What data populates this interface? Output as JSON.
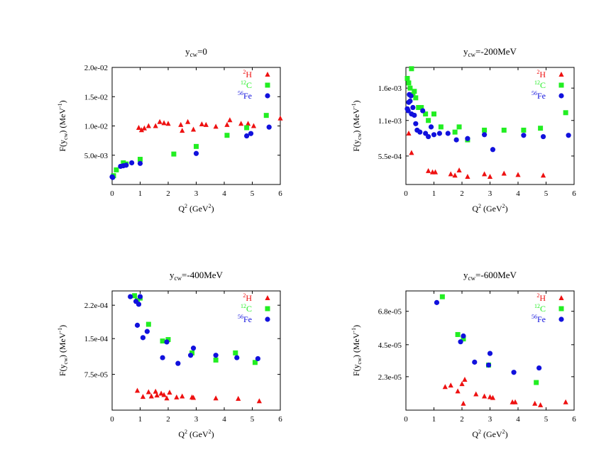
{
  "colors": {
    "2H": "#ee1111",
    "12C": "#22ee22",
    "56Fe": "#1111dd",
    "axis": "#000000"
  },
  "legend": [
    {
      "sup": "2",
      "name": "H",
      "color": "#ee1111",
      "marker": "triangle"
    },
    {
      "sup": "12",
      "name": "C",
      "color": "#22ee22",
      "marker": "square"
    },
    {
      "sup": "56",
      "name": "Fe",
      "color": "#1111dd",
      "marker": "circle"
    }
  ],
  "chart_data": [
    {
      "type": "scatter",
      "title": {
        "base": "y",
        "sub": "cw",
        "rest": "=0"
      },
      "xlabel": {
        "base": "Q",
        "sup": "2",
        "rest": " (GeV",
        "sup2": "2",
        "end": ")"
      },
      "ylabel": {
        "base": "F(y",
        "sub": "cw",
        "rest": ") (MeV",
        "sup": "-1",
        "end": ")"
      },
      "xlim": [
        0,
        6
      ],
      "ylim": [
        0,
        0.02
      ],
      "xticks": [
        0,
        1,
        2,
        3,
        4,
        5,
        6
      ],
      "yticks": [
        {
          "v": 0.005,
          "label": "5.0e-03"
        },
        {
          "v": 0.01,
          "label": "1.0e-02"
        },
        {
          "v": 0.015,
          "label": "1.5e-02"
        },
        {
          "v": 0.02,
          "label": "2.0e-02"
        }
      ],
      "series": [
        {
          "marker": "triangle",
          "color": "#ee1111",
          "x": [
            0.95,
            1.05,
            1.15,
            1.3,
            1.55,
            1.7,
            1.85,
            2.0,
            2.45,
            2.5,
            2.7,
            2.9,
            3.2,
            3.35,
            3.7,
            4.1,
            4.2,
            4.6,
            4.85,
            5.05,
            6.0
          ],
          "y": [
            0.0097,
            0.0093,
            0.0096,
            0.01,
            0.01,
            0.0107,
            0.0105,
            0.0104,
            0.0102,
            0.0092,
            0.0107,
            0.0094,
            0.0103,
            0.0102,
            0.0099,
            0.0102,
            0.011,
            0.0104,
            0.0104,
            0.01,
            0.0113
          ]
        },
        {
          "marker": "square",
          "color": "#22ee22",
          "x": [
            0.05,
            0.15,
            0.4,
            0.5,
            1.0,
            2.2,
            3.0,
            4.1,
            4.8,
            5.5
          ],
          "y": [
            0.0015,
            0.0025,
            0.0037,
            0.0035,
            0.0043,
            0.0052,
            0.0065,
            0.0084,
            0.0097,
            0.0118
          ]
        },
        {
          "marker": "circle",
          "color": "#1111dd",
          "x": [
            0.0,
            0.02,
            0.3,
            0.4,
            0.5,
            0.7,
            1.0,
            3.0,
            4.8,
            4.95,
            5.6
          ],
          "y": [
            0.0013,
            0.0012,
            0.0031,
            0.0032,
            0.0033,
            0.0037,
            0.0036,
            0.0053,
            0.0083,
            0.0087,
            0.0098
          ]
        }
      ]
    },
    {
      "type": "scatter",
      "title": {
        "base": "y",
        "sub": "cw",
        "rest": "=-200MeV"
      },
      "xlabel": {
        "base": "Q",
        "sup": "2",
        "rest": " (GeV",
        "sup2": "2",
        "end": ")"
      },
      "ylabel": {
        "base": "F(y",
        "sub": "cw",
        "rest": ") (MeV",
        "sup": "-1",
        "end": ")"
      },
      "xlim": [
        0,
        6
      ],
      "ylim": [
        0.00011,
        0.00192
      ],
      "xticks": [
        0,
        1,
        2,
        3,
        4,
        5,
        6
      ],
      "yticks": [
        {
          "v": 0.00055,
          "label": "5.5e-04"
        },
        {
          "v": 0.0011,
          "label": "1.1e-03"
        },
        {
          "v": 0.0016,
          "label": "1.6e-03"
        }
      ],
      "series": [
        {
          "marker": "triangle",
          "color": "#ee1111",
          "x": [
            0.1,
            0.2,
            0.8,
            0.95,
            1.05,
            1.6,
            1.75,
            1.9,
            2.2,
            2.8,
            3.0,
            3.5,
            4.0,
            4.9
          ],
          "y": [
            0.0009,
            0.0006,
            0.00032,
            0.0003,
            0.0003,
            0.00027,
            0.00025,
            0.00033,
            0.00023,
            0.00027,
            0.00023,
            0.00028,
            0.00026,
            0.00025
          ]
        },
        {
          "marker": "square",
          "color": "#22ee22",
          "x": [
            0.05,
            0.1,
            0.15,
            0.2,
            0.25,
            0.3,
            0.35,
            0.45,
            0.55,
            0.7,
            0.8,
            1.0,
            1.25,
            1.75,
            1.9,
            2.2,
            2.8,
            3.5,
            4.2,
            4.8,
            5.7
          ],
          "y": [
            0.00175,
            0.00168,
            0.0016,
            0.0019,
            0.0015,
            0.00155,
            0.00145,
            0.0013,
            0.0013,
            0.0012,
            0.0011,
            0.0012,
            0.001,
            0.00092,
            0.001,
            0.0008,
            0.00095,
            0.00095,
            0.00095,
            0.00098,
            0.00122
          ]
        },
        {
          "marker": "circle",
          "color": "#1111dd",
          "x": [
            0.05,
            0.08,
            0.1,
            0.12,
            0.15,
            0.18,
            0.2,
            0.25,
            0.3,
            0.35,
            0.4,
            0.5,
            0.6,
            0.7,
            0.8,
            0.9,
            1.0,
            1.2,
            1.5,
            1.8,
            2.2,
            2.8,
            3.1,
            4.2,
            4.9,
            5.8
          ],
          "y": [
            0.00128,
            0.00125,
            0.00138,
            0.0015,
            0.0014,
            0.00148,
            0.0012,
            0.0013,
            0.00118,
            0.00105,
            0.00095,
            0.00092,
            0.00125,
            0.0009,
            0.00085,
            0.001,
            0.00088,
            0.0009,
            0.0009,
            0.0008,
            0.00082,
            0.00088,
            0.00065,
            0.00087,
            0.00085,
            0.00087
          ]
        }
      ]
    },
    {
      "type": "scatter",
      "title": {
        "base": "y",
        "sub": "cw",
        "rest": "=-400MeV"
      },
      "xlabel": {
        "base": "Q",
        "sup": "2",
        "rest": " (GeV",
        "sup2": "2",
        "end": ")"
      },
      "ylabel": {
        "base": "F(y",
        "sub": "cw",
        "rest": ") (MeV",
        "sup": "-1",
        "end": ")"
      },
      "xlim": [
        0,
        6
      ],
      "ylim": [
        0,
        0.00025
      ],
      "xticks": [
        0,
        1,
        2,
        3,
        4,
        5,
        6
      ],
      "yticks": [
        {
          "v": 7.5e-05,
          "label": "7.5e-05"
        },
        {
          "v": 0.00015,
          "label": "1.5e-04"
        },
        {
          "v": 0.00022,
          "label": "2.2e-04"
        }
      ],
      "series": [
        {
          "marker": "triangle",
          "color": "#ee1111",
          "x": [
            0.9,
            1.1,
            1.3,
            1.4,
            1.55,
            1.6,
            1.75,
            1.85,
            1.95,
            2.05,
            2.3,
            2.5,
            2.85,
            2.9,
            3.7,
            4.5,
            5.25
          ],
          "y": [
            4.1e-05,
            2.8e-05,
            3.8e-05,
            2.9e-05,
            3.9e-05,
            3.1e-05,
            3.5e-05,
            3.2e-05,
            2.5e-05,
            3.7e-05,
            2.7e-05,
            2.9e-05,
            2.7e-05,
            2.6e-05,
            2.5e-05,
            2.4e-05,
            1.9e-05
          ]
        },
        {
          "marker": "square",
          "color": "#22ee22",
          "x": [
            0.8,
            0.9,
            1.0,
            1.3,
            1.8,
            2.0,
            2.85,
            3.7,
            4.4,
            5.1
          ],
          "y": [
            0.00024,
            0.00023,
            0.000235,
            0.00018,
            0.000145,
            0.000148,
            0.00012,
            0.000105,
            0.00012,
            0.0001
          ]
        },
        {
          "marker": "circle",
          "color": "#1111dd",
          "x": [
            0.65,
            0.85,
            0.9,
            0.95,
            1.0,
            1.1,
            1.25,
            1.8,
            1.95,
            2.35,
            2.8,
            2.9,
            3.7,
            4.45,
            5.2
          ],
          "y": [
            0.000238,
            0.000228,
            0.000178,
            0.000222,
            0.000238,
            0.000152,
            0.000165,
            0.00011,
            0.000143,
            9.8e-05,
            0.000115,
            0.00013,
            0.000115,
            0.00011,
            0.000108
          ]
        }
      ]
    },
    {
      "type": "scatter",
      "title": {
        "base": "y",
        "sub": "cw",
        "rest": "=-600MeV"
      },
      "xlabel": {
        "base": "Q",
        "sup": "2",
        "rest": " (GeV",
        "sup2": "2",
        "end": ")"
      },
      "ylabel": {
        "base": "F(y",
        "sub": "cw",
        "rest": ") (MeV",
        "sup": "-1",
        "end": ")"
      },
      "xlim": [
        0,
        6
      ],
      "ylim": [
        0,
        8.2e-05
      ],
      "xticks": [
        0,
        1,
        2,
        3,
        4,
        5,
        6
      ],
      "yticks": [
        {
          "v": 2.3e-05,
          "label": "2.3e-05"
        },
        {
          "v": 4.5e-05,
          "label": "4.5e-05"
        },
        {
          "v": 6.8e-05,
          "label": "6.8e-05"
        }
      ],
      "series": [
        {
          "marker": "triangle",
          "color": "#ee1111",
          "x": [
            1.4,
            1.6,
            1.85,
            2.0,
            2.05,
            2.1,
            2.5,
            2.8,
            3.0,
            3.1,
            3.8,
            3.9,
            4.6,
            4.8,
            5.7
          ],
          "y": [
            1.6e-05,
            1.7e-05,
            1.3e-05,
            1.8e-05,
            4.5e-06,
            2.1e-05,
            1.1e-05,
            9.5e-06,
            9e-06,
            8.5e-06,
            5.5e-06,
            5.5e-06,
            4.5e-06,
            3.5e-06,
            5.5e-06
          ]
        },
        {
          "marker": "square",
          "color": "#22ee22",
          "x": [
            1.3,
            1.85,
            2.05,
            2.95,
            4.65
          ],
          "y": [
            7.8e-05,
            5.2e-05,
            4.9e-05,
            3.1e-05,
            1.9e-05
          ]
        },
        {
          "marker": "circle",
          "color": "#1111dd",
          "x": [
            1.1,
            1.95,
            2.05,
            2.45,
            2.95,
            3.0,
            3.85,
            4.75
          ],
          "y": [
            7.4e-05,
            4.7e-05,
            5.1e-05,
            3.3e-05,
            3.1e-05,
            3.9e-05,
            2.6e-05,
            2.9e-05
          ]
        }
      ]
    }
  ]
}
